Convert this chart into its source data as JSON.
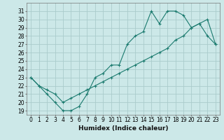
{
  "xlabel": "Humidex (Indice chaleur)",
  "ylabel": "",
  "line_color": "#1a7a6e",
  "bg_color": "#cce8e8",
  "grid_color": "#aacccc",
  "x_line1": [
    0,
    1,
    2,
    3,
    4,
    5,
    6,
    7,
    8,
    9,
    10,
    11,
    12,
    13,
    14,
    15,
    16,
    17,
    18,
    19,
    20,
    21,
    22,
    23
  ],
  "y_line1": [
    23,
    22,
    21,
    20,
    19,
    19,
    19.5,
    21,
    23,
    23.5,
    24.5,
    24.5,
    27,
    28,
    28.5,
    31,
    29.5,
    31,
    31,
    30.5,
    29,
    29.5,
    28,
    27
  ],
  "x_line2": [
    0,
    1,
    2,
    3,
    4,
    5,
    6,
    7,
    8,
    9,
    10,
    11,
    12,
    13,
    14,
    15,
    16,
    17,
    18,
    19,
    20,
    21,
    22,
    23
  ],
  "y_line2": [
    23,
    22,
    21.5,
    21,
    20,
    20.5,
    21,
    21.5,
    22,
    22.5,
    23,
    23.5,
    24,
    24.5,
    25,
    25.5,
    26,
    26.5,
    27.5,
    28,
    29,
    29.5,
    30,
    27
  ],
  "ylim": [
    18.5,
    32.0
  ],
  "xlim": [
    -0.5,
    23.5
  ],
  "yticks": [
    19,
    20,
    21,
    22,
    23,
    24,
    25,
    26,
    27,
    28,
    29,
    30,
    31
  ],
  "xticks": [
    0,
    1,
    2,
    3,
    4,
    5,
    6,
    7,
    8,
    9,
    10,
    11,
    12,
    13,
    14,
    15,
    16,
    17,
    18,
    19,
    20,
    21,
    22,
    23
  ]
}
